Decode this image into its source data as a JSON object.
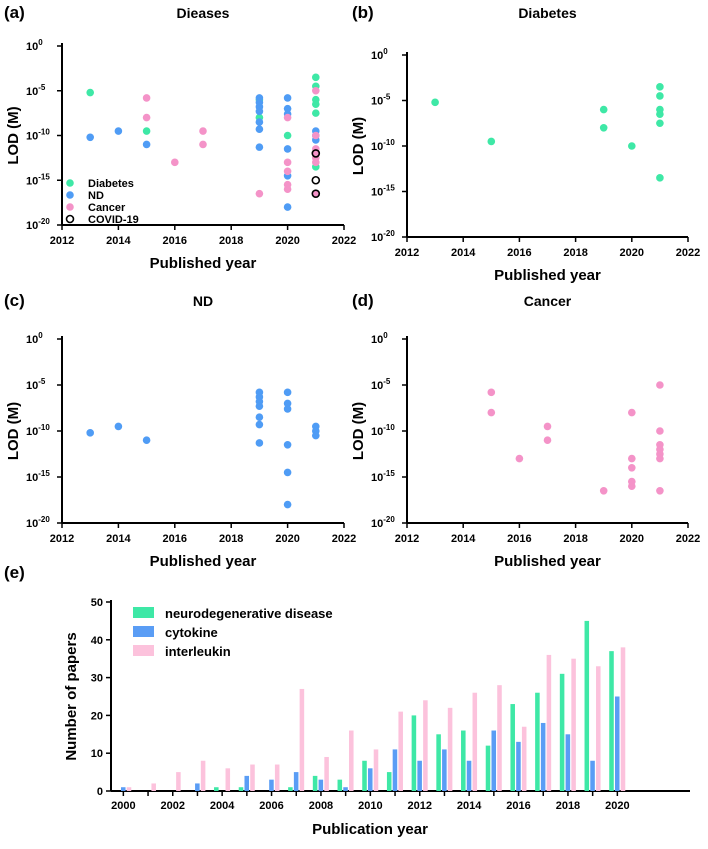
{
  "colors": {
    "diabetes": "#3ee8a6",
    "nd": "#4f9cf5",
    "cancer": "#f493c8",
    "covid": "#000000",
    "neuro": "#3ee8a6",
    "cytokine": "#5a9df5",
    "interleukin": "#fcc2dc"
  },
  "chart_data": [
    {
      "type": "scatter",
      "panel": "(a)",
      "title": "Dieases",
      "xlabel": "Published year",
      "ylabel": "LOD (M)",
      "xlim": [
        2012,
        2022
      ],
      "ylim_log10": [
        -20,
        0
      ],
      "xticks": [
        "2012",
        "2014",
        "2016",
        "2018",
        "2020",
        "2022"
      ],
      "yticks": [
        {
          "base": "10",
          "exp": "0"
        },
        {
          "base": "10",
          "exp": "-5"
        },
        {
          "base": "10",
          "exp": "-10"
        },
        {
          "base": "10",
          "exp": "-15"
        },
        {
          "base": "10",
          "exp": "-20"
        }
      ],
      "legend": [
        "Diabetes",
        "ND",
        "Cancer",
        "COVID-19"
      ],
      "legend_position": "bottom-left",
      "series": [
        {
          "name": "Diabetes",
          "x": [
            2013,
            2015,
            2019,
            2019,
            2020,
            2021,
            2021,
            2021,
            2021,
            2021,
            2021
          ],
          "log10_y": [
            -5.2,
            -9.5,
            -6,
            -8,
            -10,
            -3.5,
            -4.5,
            -6,
            -6.5,
            -7.5,
            -13.5
          ]
        },
        {
          "name": "ND",
          "x": [
            2013,
            2014,
            2015,
            2019,
            2019,
            2019,
            2019,
            2019,
            2019,
            2019,
            2020,
            2020,
            2020,
            2020,
            2020,
            2020,
            2021,
            2021,
            2021
          ],
          "log10_y": [
            -10.2,
            -9.5,
            -11,
            -5.8,
            -6.3,
            -6.8,
            -7.3,
            -8.5,
            -9.3,
            -11.3,
            -5.8,
            -7,
            -7.6,
            -11.5,
            -14.5,
            -18,
            -9.5,
            -10,
            -10.5
          ]
        },
        {
          "name": "Cancer",
          "x": [
            2015,
            2015,
            2016,
            2017,
            2017,
            2019,
            2020,
            2020,
            2020,
            2020,
            2020,
            2021,
            2021,
            2021,
            2021,
            2021,
            2021,
            2021
          ],
          "log10_y": [
            -5.8,
            -8,
            -13,
            -9.5,
            -11,
            -16.5,
            -8,
            -13,
            -14,
            -15.5,
            -16,
            -5,
            -10,
            -11.5,
            -12,
            -12.5,
            -13,
            -16.5
          ]
        },
        {
          "name": "COVID-19",
          "x": [
            2021,
            2021,
            2021
          ],
          "log10_y": [
            -12,
            -15,
            -16.5
          ]
        }
      ]
    },
    {
      "type": "scatter",
      "panel": "(b)",
      "title": "Diabetes",
      "xlabel": "Published year",
      "ylabel": "LOD (M)",
      "series": [
        {
          "name": "Diabetes",
          "x": [
            2013,
            2015,
            2019,
            2019,
            2020,
            2021,
            2021,
            2021,
            2021,
            2021,
            2021
          ],
          "log10_y": [
            -5.2,
            -9.5,
            -6,
            -8,
            -10,
            -3.5,
            -4.5,
            -6,
            -6.5,
            -7.5,
            -13.5
          ]
        }
      ]
    },
    {
      "type": "scatter",
      "panel": "(c)",
      "title": "ND",
      "xlabel": "Published year",
      "ylabel": "LOD (M)",
      "series": [
        {
          "name": "ND",
          "x": [
            2013,
            2014,
            2015,
            2019,
            2019,
            2019,
            2019,
            2019,
            2019,
            2019,
            2020,
            2020,
            2020,
            2020,
            2020,
            2020,
            2021,
            2021,
            2021
          ],
          "log10_y": [
            -10.2,
            -9.5,
            -11,
            -5.8,
            -6.3,
            -6.8,
            -7.3,
            -8.5,
            -9.3,
            -11.3,
            -5.8,
            -7,
            -7.6,
            -11.5,
            -14.5,
            -18,
            -9.5,
            -10,
            -10.5
          ]
        }
      ]
    },
    {
      "type": "scatter",
      "panel": "(d)",
      "title": "Cancer",
      "xlabel": "Published year",
      "ylabel": "LOD (M)",
      "series": [
        {
          "name": "Cancer",
          "x": [
            2015,
            2015,
            2016,
            2017,
            2017,
            2019,
            2020,
            2020,
            2020,
            2020,
            2020,
            2021,
            2021,
            2021,
            2021,
            2021,
            2021,
            2021
          ],
          "log10_y": [
            -5.8,
            -8,
            -13,
            -9.5,
            -11,
            -16.5,
            -8,
            -13,
            -14,
            -15.5,
            -16,
            -5,
            -10,
            -11.5,
            -12,
            -12.5,
            -13,
            -16.5
          ]
        }
      ]
    },
    {
      "type": "bar",
      "panel": "(e)",
      "xlabel": "Publication year",
      "ylabel": "Number of papers",
      "ylim": [
        0,
        50
      ],
      "yticks": [
        "0",
        "10",
        "20",
        "30",
        "40",
        "50"
      ],
      "xticks": [
        "2000",
        "2002",
        "2004",
        "2006",
        "2008",
        "2010",
        "2012",
        "2014",
        "2016",
        "2018",
        "2020"
      ],
      "categories": [
        2000,
        2001,
        2002,
        2003,
        2004,
        2005,
        2006,
        2007,
        2008,
        2009,
        2010,
        2011,
        2012,
        2013,
        2014,
        2015,
        2016,
        2017,
        2018,
        2019,
        2020
      ],
      "legend_position": "top-left",
      "series": [
        {
          "name": "neurodegenerative disease",
          "values": [
            0,
            0,
            0,
            0,
            1,
            1,
            0,
            1,
            4,
            3,
            8,
            5,
            20,
            15,
            16,
            12,
            23,
            26,
            31,
            45,
            37
          ]
        },
        {
          "name": "cytokine",
          "values": [
            1,
            0,
            0,
            2,
            0,
            4,
            3,
            5,
            3,
            1,
            6,
            11,
            8,
            11,
            8,
            16,
            13,
            18,
            15,
            8,
            25
          ]
        },
        {
          "name": "interleukin",
          "values": [
            1,
            2,
            5,
            8,
            6,
            7,
            7,
            27,
            9,
            16,
            11,
            21,
            24,
            22,
            26,
            28,
            17,
            36,
            35,
            33,
            38
          ]
        }
      ]
    }
  ]
}
